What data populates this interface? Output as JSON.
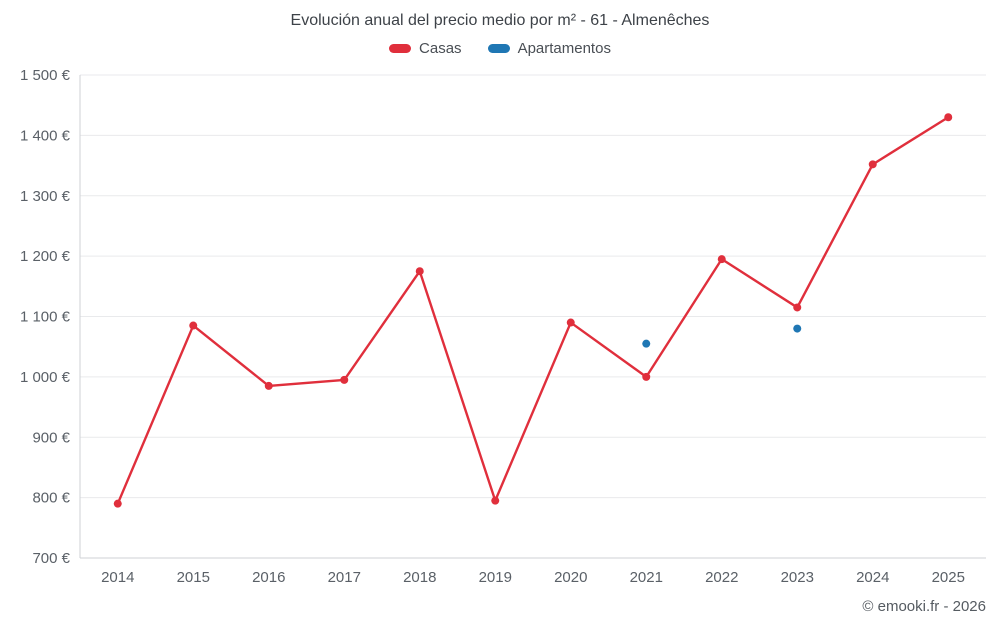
{
  "title": "Evolución anual del precio medio por m² - 61 - Almenêches",
  "attribution": "© emooki.fr - 2026",
  "chart_data": {
    "type": "line",
    "title": "Evolución anual del precio medio por m² - 61 - Almenêches",
    "x": [
      "2014",
      "2015",
      "2016",
      "2017",
      "2018",
      "2019",
      "2020",
      "2021",
      "2022",
      "2023",
      "2024",
      "2025"
    ],
    "series": [
      {
        "name": "Casas",
        "color": "#e02f3c",
        "values": [
          790,
          1085,
          985,
          995,
          1175,
          795,
          1090,
          1000,
          1195,
          1115,
          1352,
          1430
        ]
      },
      {
        "name": "Apartamentos",
        "color": "#1f77b4",
        "values": [
          null,
          null,
          null,
          null,
          null,
          null,
          null,
          1055,
          null,
          1080,
          null,
          null
        ]
      }
    ],
    "ylim": [
      700,
      1500
    ],
    "ytick_step": 100,
    "yticklabels": [
      "700 €",
      "800 €",
      "900 €",
      "1 000 €",
      "1 100 €",
      "1 200 €",
      "1 300 €",
      "1 400 €",
      "1 500 €"
    ],
    "grid": true,
    "legend_position": "top",
    "grid_color": "#e9eaec",
    "axis_color": "#cfd2d6"
  }
}
